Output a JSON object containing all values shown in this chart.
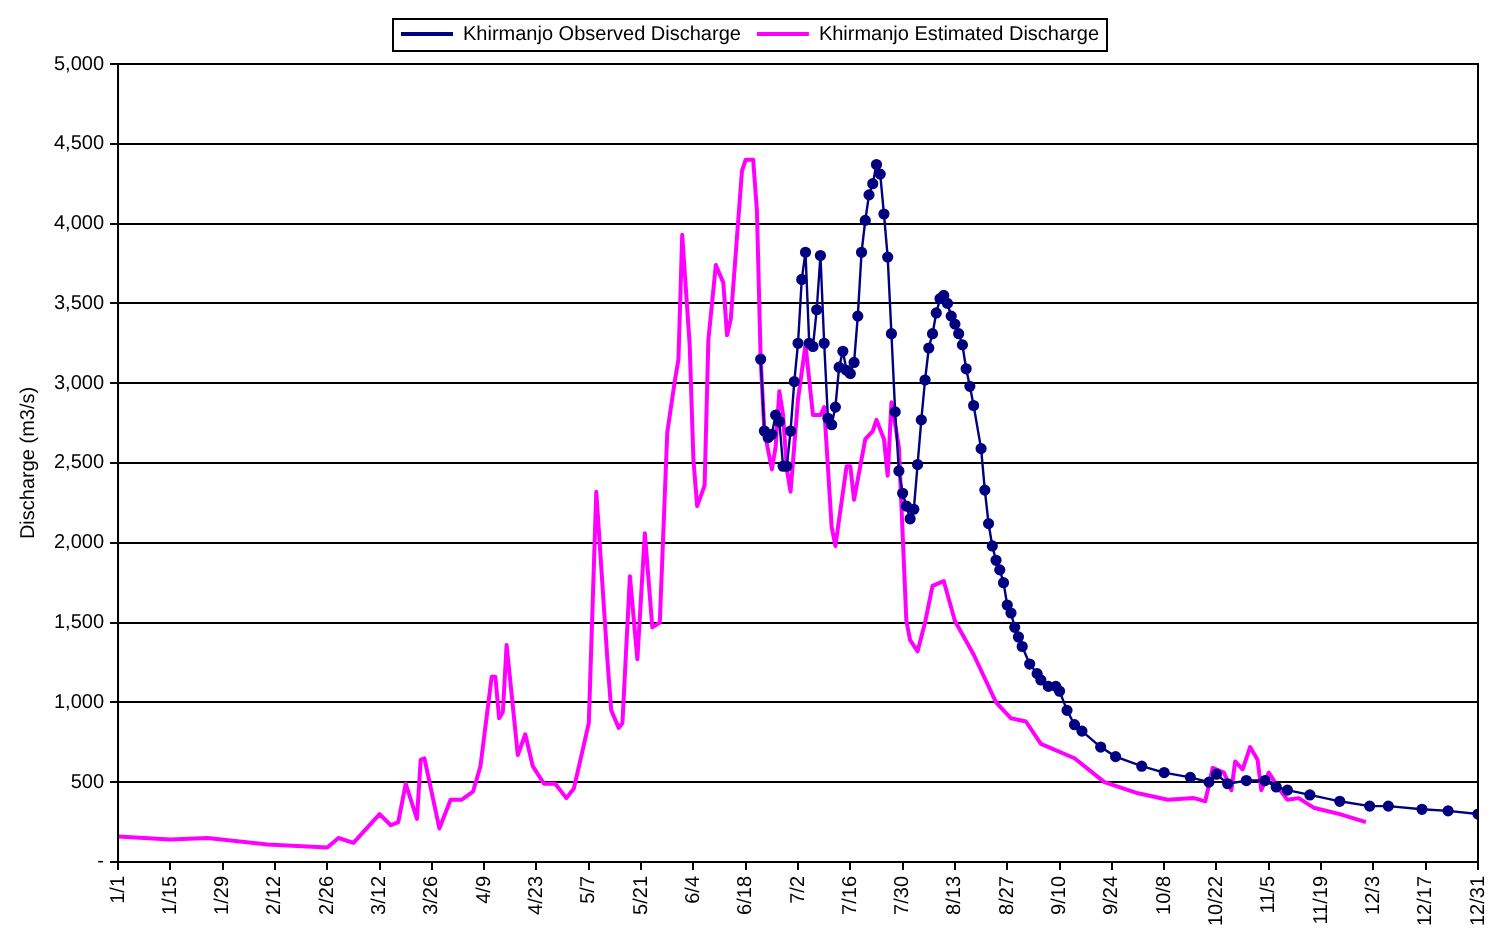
{
  "chart_data": {
    "type": "line",
    "ylabel": "Discharge (m3/s)",
    "legend": "top",
    "grid": "y",
    "xlim": [
      "--01-01",
      "--12-31"
    ],
    "xticks": [
      {
        "value": "--01-01",
        "label": "1/1"
      },
      {
        "value": "--01-15",
        "label": "1/15"
      },
      {
        "value": "--01-29",
        "label": "1/29"
      },
      {
        "value": "--02-12",
        "label": "2/12"
      },
      {
        "value": "--02-26",
        "label": "2/26"
      },
      {
        "value": "--03-12",
        "label": "3/12"
      },
      {
        "value": "--03-26",
        "label": "3/26"
      },
      {
        "value": "--04-09",
        "label": "4/9"
      },
      {
        "value": "--04-23",
        "label": "4/23"
      },
      {
        "value": "--05-07",
        "label": "5/7"
      },
      {
        "value": "--05-21",
        "label": "5/21"
      },
      {
        "value": "--06-04",
        "label": "6/4"
      },
      {
        "value": "--06-18",
        "label": "6/18"
      },
      {
        "value": "--07-02",
        "label": "7/2"
      },
      {
        "value": "--07-16",
        "label": "7/16"
      },
      {
        "value": "--07-30",
        "label": "7/30"
      },
      {
        "value": "--08-13",
        "label": "8/13"
      },
      {
        "value": "--08-27",
        "label": "8/27"
      },
      {
        "value": "--09-10",
        "label": "9/10"
      },
      {
        "value": "--09-24",
        "label": "9/24"
      },
      {
        "value": "--10-08",
        "label": "10/8"
      },
      {
        "value": "--10-22",
        "label": "10/22"
      },
      {
        "value": "--11-05",
        "label": "11/5"
      },
      {
        "value": "--11-19",
        "label": "11/19"
      },
      {
        "value": "--12-03",
        "label": "12/3"
      },
      {
        "value": "--12-17",
        "label": "12/17"
      },
      {
        "value": "--12-31",
        "label": "12/31"
      }
    ],
    "ylim": [
      0,
      5000
    ],
    "yticks": [
      {
        "value": 0,
        "label": "-"
      },
      500,
      {
        "value": 1000,
        "label": "1,000"
      },
      {
        "value": 1500,
        "label": "1,500"
      },
      {
        "value": 2000,
        "label": "2,000"
      },
      {
        "value": 2500,
        "label": "2,500"
      },
      {
        "value": 3000,
        "label": "3,000"
      },
      {
        "value": 3500,
        "label": "3,500"
      },
      {
        "value": 4000,
        "label": "4,000"
      },
      {
        "value": 4500,
        "label": "4,500"
      },
      {
        "value": 5000,
        "label": "5,000"
      }
    ],
    "series": [
      {
        "name": "Khirmanjo Observed Discharge",
        "color": "#000080",
        "marker": "circle",
        "x": [
          "--06-22",
          "--06-23",
          "--06-24",
          "--06-25",
          "--06-26",
          "--06-27",
          "--06-28",
          "--06-29",
          "--06-30",
          "--07-01",
          "--07-02",
          "--07-03",
          "--07-04",
          "--07-05",
          "--07-06",
          "--07-07",
          "--07-08",
          "--07-09",
          "--07-10",
          "--07-11",
          "--07-12",
          "--07-13",
          "--07-14",
          "--07-15",
          "--07-16",
          "--07-17",
          "--07-18",
          "--07-19",
          "--07-20",
          "--07-21",
          "--07-22",
          "--07-23",
          "--07-24",
          "--07-25",
          "--07-26",
          "--07-27",
          "--07-28",
          "--07-29",
          "--07-30",
          "--07-31",
          "--08-01",
          "--08-02",
          "--08-03",
          "--08-04",
          "--08-05",
          "--08-06",
          "--08-07",
          "--08-08",
          "--08-09",
          "--08-10",
          "--08-11",
          "--08-12",
          "--08-13",
          "--08-14",
          "--08-15",
          "--08-16",
          "--08-17",
          "--08-18",
          "--08-20",
          "--08-21",
          "--08-22",
          "--08-23",
          "--08-24",
          "--08-25",
          "--08-26",
          "--08-27",
          "--08-28",
          "--08-29",
          "--08-30",
          "--08-31",
          "--09-02",
          "--09-04",
          "--09-05",
          "--09-07",
          "--09-09",
          "--09-10",
          "--09-12",
          "--09-14",
          "--09-16",
          "--09-21",
          "--09-25",
          "--10-02",
          "--10-08",
          "--10-15",
          "--10-20",
          "--10-22",
          "--10-25",
          "--10-30",
          "--11-04",
          "--11-07",
          "--11-10",
          "--11-16",
          "--11-24",
          "--12-02",
          "--12-07",
          "--12-16",
          "--12-23",
          "--12-31"
        ],
        "values": [
          3150,
          2700,
          2660,
          2680,
          2800,
          2760,
          2480,
          2480,
          2700,
          3010,
          3250,
          3650,
          3820,
          3250,
          3230,
          3460,
          3800,
          3250,
          2780,
          2740,
          2850,
          3100,
          3200,
          3080,
          3060,
          3130,
          3420,
          3820,
          4020,
          4180,
          4250,
          4370,
          4310,
          4060,
          3790,
          3310,
          2820,
          2450,
          2310,
          2230,
          2150,
          2210,
          2490,
          2770,
          3020,
          3220,
          3310,
          3440,
          3530,
          3550,
          3500,
          3420,
          3370,
          3310,
          3240,
          3090,
          2980,
          2860,
          2590,
          2330,
          2120,
          1980,
          1890,
          1830,
          1750,
          1610,
          1560,
          1470,
          1410,
          1350,
          1240,
          1180,
          1140,
          1100,
          1100,
          1070,
          950,
          860,
          820,
          720,
          660,
          600,
          560,
          530,
          500,
          550,
          490,
          510,
          510,
          470,
          450,
          420,
          380,
          350,
          350,
          330,
          320,
          300
        ]
      },
      {
        "name": "Khirmanjo Estimated Discharge",
        "color": "#ff00ff",
        "marker": "none",
        "x": [
          "--01-01",
          "--01-15",
          "--01-25",
          "--02-10",
          "--02-26",
          "--03-01",
          "--03-05",
          "--03-12",
          "--03-15",
          "--03-17",
          "--03-19",
          "--03-22",
          "--03-23",
          "--03-24",
          "--03-28",
          "--03-31",
          "--04-03",
          "--04-06",
          "--04-08",
          "--04-11",
          "--04-12",
          "--04-13",
          "--04-14",
          "--04-15",
          "--04-18",
          "--04-20",
          "--04-22",
          "--04-25",
          "--04-28",
          "--05-01",
          "--05-03",
          "--05-07",
          "--05-09",
          "--05-12",
          "--05-13",
          "--05-15",
          "--05-16",
          "--05-18",
          "--05-20",
          "--05-22",
          "--05-24",
          "--05-26",
          "--05-28",
          "--05-30",
          "--05-31",
          "--06-01",
          "--06-03",
          "--06-04",
          "--06-05",
          "--06-07",
          "--06-08",
          "--06-10",
          "--06-12",
          "--06-13",
          "--06-14",
          "--06-17",
          "--06-18",
          "--06-20",
          "--06-21",
          "--06-22",
          "--06-23",
          "--06-25",
          "--06-26",
          "--06-27",
          "--06-28",
          "--06-29",
          "--06-30",
          "--07-02",
          "--07-04",
          "--07-06",
          "--07-08",
          "--07-09",
          "--07-11",
          "--07-12",
          "--07-15",
          "--07-16",
          "--07-17",
          "--07-20",
          "--07-22",
          "--07-23",
          "--07-25",
          "--07-26",
          "--07-27",
          "--07-29",
          "--07-31",
          "--08-01",
          "--08-03",
          "--08-05",
          "--08-07",
          "--08-10",
          "--08-13",
          "--08-18",
          "--08-24",
          "--08-28",
          "--09-01",
          "--09-05",
          "--09-14",
          "--09-22",
          "--10-01",
          "--10-09",
          "--10-16",
          "--10-19",
          "--10-21",
          "--10-24",
          "--10-26",
          "--10-27",
          "--10-29",
          "--10-31",
          "--11-02",
          "--11-03",
          "--11-05",
          "--11-08",
          "--11-10",
          "--11-13",
          "--11-17",
          "--11-24",
          "--12-01"
        ],
        "values": [
          160,
          140,
          150,
          110,
          90,
          150,
          120,
          300,
          230,
          250,
          490,
          270,
          640,
          650,
          210,
          390,
          390,
          440,
          600,
          1160,
          1160,
          900,
          940,
          1360,
          670,
          800,
          600,
          490,
          490,
          400,
          460,
          870,
          2320,
          1260,
          950,
          840,
          870,
          1790,
          1270,
          2060,
          1470,
          1500,
          2690,
          3010,
          3150,
          3930,
          3240,
          2520,
          2230,
          2360,
          3270,
          3740,
          3630,
          3300,
          3400,
          4330,
          4400,
          4400,
          4080,
          3150,
          2700,
          2460,
          2600,
          2950,
          2800,
          2460,
          2320,
          2900,
          3240,
          2800,
          2800,
          2850,
          2100,
          1980,
          2480,
          2480,
          2270,
          2650,
          2700,
          2770,
          2650,
          2420,
          2880,
          2600,
          1510,
          1390,
          1320,
          1500,
          1730,
          1760,
          1510,
          1300,
          1000,
          900,
          880,
          740,
          650,
          500,
          430,
          390,
          400,
          380,
          590,
          560,
          450,
          630,
          580,
          720,
          640,
          450,
          560,
          450,
          390,
          400,
          340,
          300,
          250
        ]
      }
    ]
  }
}
